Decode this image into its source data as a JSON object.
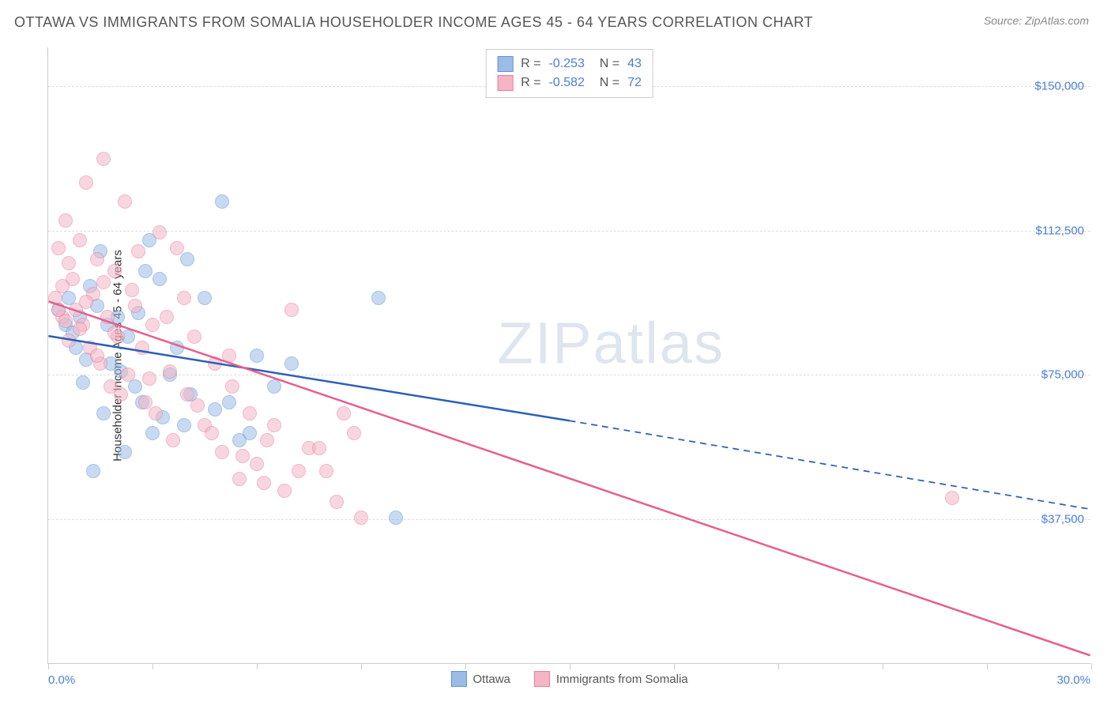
{
  "title": "OTTAWA VS IMMIGRANTS FROM SOMALIA HOUSEHOLDER INCOME AGES 45 - 64 YEARS CORRELATION CHART",
  "source": "Source: ZipAtlas.com",
  "watermark": {
    "bold": "ZIP",
    "rest": "atlas"
  },
  "chart": {
    "type": "scatter",
    "y_axis": {
      "label": "Householder Income Ages 45 - 64 years",
      "min": 0,
      "max": 160000,
      "ticks": [
        {
          "value": 37500,
          "label": "$37,500"
        },
        {
          "value": 75000,
          "label": "$75,000"
        },
        {
          "value": 112500,
          "label": "$112,500"
        },
        {
          "value": 150000,
          "label": "$150,000"
        }
      ],
      "tick_fontsize": 15,
      "tick_color": "#4a7fd4",
      "label_fontsize": 15,
      "label_color": "#333333"
    },
    "x_axis": {
      "min": 0,
      "max": 30,
      "min_label": "0.0%",
      "max_label": "30.0%",
      "tick_positions_pct": [
        0,
        10,
        20,
        30,
        40,
        50,
        60,
        70,
        80,
        90,
        100
      ],
      "label_color": "#4a7fd4",
      "label_fontsize": 15
    },
    "grid_color": "#dddddd",
    "border_color": "#cccccc",
    "background_color": "#ffffff",
    "series": [
      {
        "name": "Ottawa",
        "legend_label": "Ottawa",
        "color_fill": "#9bbce6",
        "color_stroke": "#5e94d6",
        "marker_radius": 9,
        "marker_opacity": 0.55,
        "stats": {
          "R": "-0.253",
          "N": "43"
        },
        "trendline": {
          "color": "#2d5fb5",
          "width": 2.5,
          "solid": {
            "x1_pct": 0,
            "y1": 85000,
            "x2_pct": 50,
            "y2": 63000
          },
          "dashed": {
            "x1_pct": 50,
            "y1": 63000,
            "x2_pct": 100,
            "y2": 40000
          }
        },
        "points": [
          {
            "x": 0.3,
            "y": 92000
          },
          {
            "x": 0.5,
            "y": 88000
          },
          {
            "x": 0.6,
            "y": 95000
          },
          {
            "x": 0.8,
            "y": 82000
          },
          {
            "x": 1.0,
            "y": 73000
          },
          {
            "x": 1.2,
            "y": 98000
          },
          {
            "x": 1.3,
            "y": 50000
          },
          {
            "x": 1.5,
            "y": 107000
          },
          {
            "x": 1.6,
            "y": 65000
          },
          {
            "x": 1.8,
            "y": 78000
          },
          {
            "x": 2.0,
            "y": 90000
          },
          {
            "x": 2.2,
            "y": 55000
          },
          {
            "x": 2.3,
            "y": 85000
          },
          {
            "x": 2.5,
            "y": 72000
          },
          {
            "x": 2.7,
            "y": 68000
          },
          {
            "x": 2.9,
            "y": 110000
          },
          {
            "x": 3.0,
            "y": 60000
          },
          {
            "x": 3.2,
            "y": 100000
          },
          {
            "x": 3.5,
            "y": 75000
          },
          {
            "x": 3.7,
            "y": 82000
          },
          {
            "x": 3.9,
            "y": 62000
          },
          {
            "x": 4.1,
            "y": 70000
          },
          {
            "x": 4.5,
            "y": 95000
          },
          {
            "x": 5.0,
            "y": 120000
          },
          {
            "x": 5.2,
            "y": 68000
          },
          {
            "x": 5.5,
            "y": 58000
          },
          {
            "x": 6.0,
            "y": 80000
          },
          {
            "x": 6.5,
            "y": 72000
          },
          {
            "x": 7.0,
            "y": 78000
          },
          {
            "x": 9.5,
            "y": 95000
          },
          {
            "x": 10.0,
            "y": 38000
          },
          {
            "x": 2.8,
            "y": 102000
          },
          {
            "x": 1.4,
            "y": 93000
          },
          {
            "x": 0.7,
            "y": 86000
          },
          {
            "x": 0.9,
            "y": 90000
          },
          {
            "x": 1.1,
            "y": 79000
          },
          {
            "x": 1.7,
            "y": 88000
          },
          {
            "x": 2.1,
            "y": 76000
          },
          {
            "x": 2.6,
            "y": 91000
          },
          {
            "x": 3.3,
            "y": 64000
          },
          {
            "x": 4.0,
            "y": 105000
          },
          {
            "x": 4.8,
            "y": 66000
          },
          {
            "x": 5.8,
            "y": 60000
          }
        ]
      },
      {
        "name": "Immigrants from Somalia",
        "legend_label": "Immigrants from Somalia",
        "color_fill": "#f4b5c5",
        "color_stroke": "#e87c9e",
        "marker_radius": 9,
        "marker_opacity": 0.55,
        "stats": {
          "R": "-0.582",
          "N": "72"
        },
        "trendline": {
          "color": "#e75f8a",
          "width": 2.5,
          "solid": {
            "x1_pct": 0,
            "y1": 94000,
            "x2_pct": 100,
            "y2": 2000
          },
          "dashed": null
        },
        "points": [
          {
            "x": 0.2,
            "y": 95000
          },
          {
            "x": 0.3,
            "y": 108000
          },
          {
            "x": 0.4,
            "y": 90000
          },
          {
            "x": 0.5,
            "y": 115000
          },
          {
            "x": 0.6,
            "y": 84000
          },
          {
            "x": 0.7,
            "y": 100000
          },
          {
            "x": 0.8,
            "y": 92000
          },
          {
            "x": 0.9,
            "y": 110000
          },
          {
            "x": 1.0,
            "y": 88000
          },
          {
            "x": 1.1,
            "y": 125000
          },
          {
            "x": 1.2,
            "y": 82000
          },
          {
            "x": 1.3,
            "y": 96000
          },
          {
            "x": 1.4,
            "y": 105000
          },
          {
            "x": 1.5,
            "y": 78000
          },
          {
            "x": 1.6,
            "y": 131000
          },
          {
            "x": 1.7,
            "y": 90000
          },
          {
            "x": 1.8,
            "y": 72000
          },
          {
            "x": 1.9,
            "y": 102000
          },
          {
            "x": 2.0,
            "y": 85000
          },
          {
            "x": 2.2,
            "y": 120000
          },
          {
            "x": 2.3,
            "y": 75000
          },
          {
            "x": 2.5,
            "y": 93000
          },
          {
            "x": 2.6,
            "y": 107000
          },
          {
            "x": 2.8,
            "y": 68000
          },
          {
            "x": 3.0,
            "y": 88000
          },
          {
            "x": 3.2,
            "y": 112000
          },
          {
            "x": 3.5,
            "y": 76000
          },
          {
            "x": 3.7,
            "y": 108000
          },
          {
            "x": 4.0,
            "y": 70000
          },
          {
            "x": 4.2,
            "y": 85000
          },
          {
            "x": 4.5,
            "y": 62000
          },
          {
            "x": 4.8,
            "y": 78000
          },
          {
            "x": 5.0,
            "y": 55000
          },
          {
            "x": 5.3,
            "y": 72000
          },
          {
            "x": 5.5,
            "y": 48000
          },
          {
            "x": 5.8,
            "y": 65000
          },
          {
            "x": 6.0,
            "y": 52000
          },
          {
            "x": 6.3,
            "y": 58000
          },
          {
            "x": 6.8,
            "y": 45000
          },
          {
            "x": 7.0,
            "y": 92000
          },
          {
            "x": 7.5,
            "y": 56000
          },
          {
            "x": 8.0,
            "y": 50000
          },
          {
            "x": 8.5,
            "y": 65000
          },
          {
            "x": 9.0,
            "y": 38000
          },
          {
            "x": 26.0,
            "y": 43000
          },
          {
            "x": 0.4,
            "y": 98000
          },
          {
            "x": 0.6,
            "y": 104000
          },
          {
            "x": 0.9,
            "y": 87000
          },
          {
            "x": 1.1,
            "y": 94000
          },
          {
            "x": 1.4,
            "y": 80000
          },
          {
            "x": 1.6,
            "y": 99000
          },
          {
            "x": 1.9,
            "y": 86000
          },
          {
            "x": 2.1,
            "y": 70000
          },
          {
            "x": 2.4,
            "y": 97000
          },
          {
            "x": 2.7,
            "y": 82000
          },
          {
            "x": 2.9,
            "y": 74000
          },
          {
            "x": 3.1,
            "y": 65000
          },
          {
            "x": 3.4,
            "y": 90000
          },
          {
            "x": 3.6,
            "y": 58000
          },
          {
            "x": 3.9,
            "y": 95000
          },
          {
            "x": 4.3,
            "y": 67000
          },
          {
            "x": 4.7,
            "y": 60000
          },
          {
            "x": 5.2,
            "y": 80000
          },
          {
            "x": 5.6,
            "y": 54000
          },
          {
            "x": 6.2,
            "y": 47000
          },
          {
            "x": 6.5,
            "y": 62000
          },
          {
            "x": 7.2,
            "y": 50000
          },
          {
            "x": 7.8,
            "y": 56000
          },
          {
            "x": 8.3,
            "y": 42000
          },
          {
            "x": 8.8,
            "y": 60000
          },
          {
            "x": 0.3,
            "y": 92000
          },
          {
            "x": 0.5,
            "y": 89000
          }
        ]
      }
    ],
    "legend_top": {
      "border_color": "#cccccc",
      "fontsize": 16
    },
    "legend_bottom": {
      "fontsize": 15,
      "text_color": "#555555"
    }
  }
}
